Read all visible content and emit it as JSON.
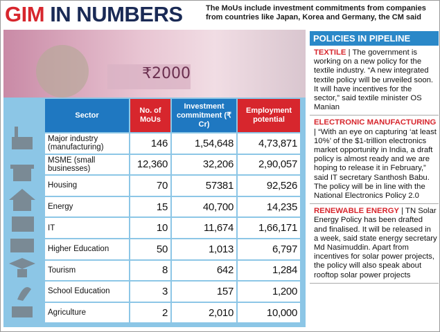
{
  "header": {
    "title_accent": "GIM",
    "title_rest": "IN NUMBERS",
    "subtitle": "The MoUs include investment commitments from companies from countries like Japan, Korea and Germany, the CM said"
  },
  "table": {
    "columns": [
      "Sector",
      "No. of MoUs",
      "Investment commitment (₹ Cr)",
      "Employment potential"
    ],
    "rows": [
      [
        "Major industry (manufacturing)",
        "146",
        "1,54,648",
        "4,73,871"
      ],
      [
        "MSME (small businesses)",
        "12,360",
        "32,206",
        "2,90,057"
      ],
      [
        "Housing",
        "70",
        "57381",
        "92,526"
      ],
      [
        "Energy",
        "15",
        "40,700",
        "14,235"
      ],
      [
        "IT",
        "10",
        "11,674",
        "1,66,171"
      ],
      [
        "Higher Education",
        "50",
        "1,013",
        "6,797"
      ],
      [
        "Tourism",
        "8",
        "642",
        "1,284"
      ],
      [
        "School Education",
        "3",
        "157",
        "1,200"
      ],
      [
        "Agriculture",
        "2",
        "2,010",
        "10,000"
      ]
    ]
  },
  "policies": {
    "title": "POLICIES IN PIPELINE",
    "items": [
      {
        "label": "TEXTILE",
        "text": "| The government is working on a new policy for the textile industry. “A new integrated textile policy will be unveiled soon. It will have incentives for the sector,” said textile minister OS Manian"
      },
      {
        "label": "ELECTRONIC MANUFACTURING",
        "text": "| “With an eye on capturing ‘at least 10%’ of the $1-trillion electronics market opportunity in India, a draft policy is almost ready and we are hoping to release it in February,” said IT secretary Santhosh Babu. The policy will be in line with the National Electronics Policy 2.0"
      },
      {
        "label": "RENEWABLE ENERGY",
        "text": "| TN Solar Energy Policy has been drafted and finalised. It will be released in a week, said state energy secretary Md Nasimuddin. Apart from incentives for solar power projects, the policy will also speak about rooftop solar power projects"
      }
    ]
  }
}
